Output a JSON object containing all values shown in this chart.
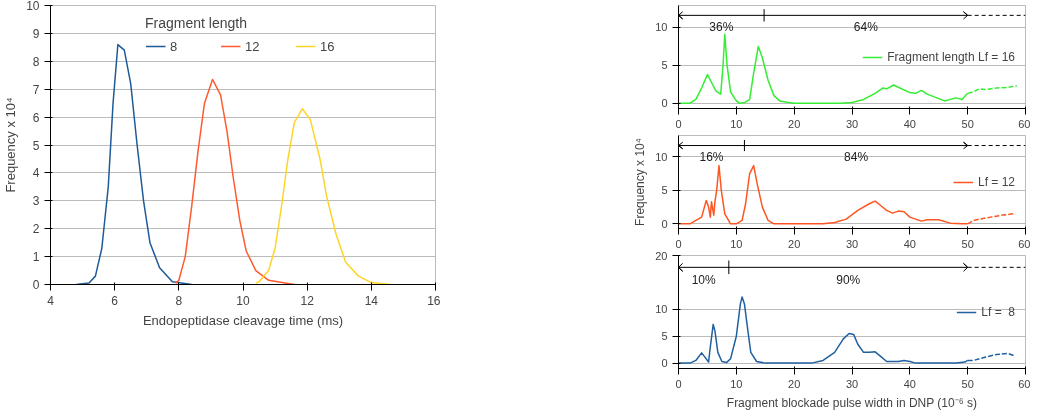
{
  "chart_data": [
    {
      "type": "line",
      "xlabel": "Endopeptidase cleavage time (ms)",
      "ylabel": "Frequency x 10⁴",
      "legend_title": "Fragment length",
      "legend": "top",
      "grid": "y",
      "xlim": [
        4,
        16
      ],
      "xticks": [
        4,
        6,
        8,
        10,
        12,
        14,
        16
      ],
      "ylim": [
        0,
        10
      ],
      "yticks": [
        0,
        1,
        2,
        3,
        4,
        5,
        6,
        7,
        8,
        9,
        10
      ],
      "series": [
        {
          "name": "8",
          "color": "#1f5a99",
          "x": [
            4.8,
            5.2,
            5.4,
            5.6,
            5.8,
            5.95,
            6.1,
            6.3,
            6.5,
            6.7,
            6.9,
            7.1,
            7.4,
            7.8,
            8.4
          ],
          "values": [
            0,
            0.05,
            0.3,
            1.3,
            3.5,
            6.5,
            8.6,
            8.4,
            7.2,
            5.0,
            3.0,
            1.5,
            0.6,
            0.1,
            0
          ]
        },
        {
          "name": "12",
          "color": "#ff5a30",
          "x": [
            7.9,
            8.0,
            8.2,
            8.4,
            8.6,
            8.8,
            9.05,
            9.3,
            9.5,
            9.7,
            9.9,
            10.1,
            10.4,
            10.8,
            11.6
          ],
          "values": [
            0.05,
            0.15,
            1.0,
            2.8,
            4.8,
            6.5,
            7.35,
            6.8,
            5.5,
            3.8,
            2.3,
            1.2,
            0.5,
            0.15,
            0
          ]
        },
        {
          "name": "16",
          "color": "#ffd42a",
          "x": [
            10.4,
            10.5,
            10.8,
            11.0,
            11.2,
            11.4,
            11.6,
            11.85,
            12.1,
            12.4,
            12.6,
            12.9,
            13.2,
            13.6,
            14.0,
            14.6
          ],
          "values": [
            0.05,
            0.1,
            0.5,
            1.3,
            2.8,
            4.5,
            5.8,
            6.3,
            5.9,
            4.5,
            3.2,
            1.8,
            0.8,
            0.3,
            0.07,
            0
          ]
        }
      ]
    },
    {
      "type": "line",
      "legend": "right",
      "grid": "y",
      "xlim": [
        0,
        60
      ],
      "xticks": [
        0,
        10,
        20,
        30,
        40,
        50,
        60
      ],
      "ylim": [
        -0.7,
        12.9
      ],
      "yticks": [
        0,
        5,
        10
      ],
      "ref_lines": [
        {
          "axis": "y",
          "value": 11.6
        },
        {
          "axis": "y",
          "value": 11.6,
          "line_style": "dashed"
        },
        {
          "axis": "x",
          "value": 14.8
        }
      ],
      "annotations": [
        "36%",
        "64%"
      ],
      "series": [
        {
          "name": "Fragment length Lf = 16",
          "color": "#33ee33",
          "line_style": "solid",
          "x": [
            0,
            2,
            3,
            4,
            5,
            6,
            6.5,
            7.3,
            7.7,
            8,
            8.4,
            9,
            10,
            10.5,
            11.5,
            12.3,
            13,
            13.8,
            14.5,
            15.5,
            16.5,
            17.5,
            19,
            20,
            28,
            30,
            32,
            34,
            35.3,
            36,
            37.2,
            38,
            40,
            41,
            42,
            43,
            45,
            46,
            48,
            49,
            50
          ],
          "values": [
            0,
            0,
            0.5,
            2,
            3.8,
            2.3,
            1.6,
            1.2,
            5,
            9.1,
            5,
            1.5,
            0.3,
            0,
            0.1,
            0.5,
            4,
            7.5,
            6,
            3,
            1,
            0.3,
            0.1,
            0,
            0,
            0.1,
            0.5,
            1.3,
            2,
            1.9,
            2.4,
            2.1,
            1.4,
            1.3,
            1.7,
            1.2,
            0.6,
            0.3,
            0.7,
            0.5,
            1.3
          ]
        },
        {
          "color": "#33ee33",
          "line_style": "dashed",
          "x": [
            50,
            51,
            52,
            53,
            55,
            57,
            58.5
          ],
          "values": [
            1.3,
            1.5,
            1.9,
            1.8,
            2.0,
            2.1,
            2.3
          ]
        }
      ]
    },
    {
      "type": "line",
      "ylabel": "Frequency x 10⁴",
      "legend": "right",
      "grid": "y",
      "xlim": [
        0,
        60
      ],
      "xticks": [
        0,
        10,
        20,
        30,
        40,
        50,
        60
      ],
      "ylim": [
        -0.7,
        13.2
      ],
      "yticks": [
        0,
        5,
        10
      ],
      "ref_lines": [
        {
          "axis": "y",
          "value": 11.7
        },
        {
          "axis": "y",
          "value": 11.7,
          "line_style": "dashed"
        },
        {
          "axis": "x",
          "value": 11.4
        }
      ],
      "annotations": [
        "16%",
        "84%"
      ],
      "series": [
        {
          "name": "Lf = 12",
          "color": "#ff5522",
          "line_style": "solid",
          "x": [
            0,
            2,
            3,
            4,
            4.8,
            5.2,
            5.5,
            5.7,
            6.1,
            6.3,
            6.6,
            7,
            7.4,
            8,
            9,
            10,
            11,
            11.6,
            12.3,
            13,
            13.6,
            14.5,
            15.5,
            16.5,
            25,
            27,
            29,
            31,
            33,
            34,
            35,
            36,
            37,
            38,
            39,
            40,
            42,
            43,
            45,
            47,
            49,
            50
          ],
          "values": [
            0,
            0,
            0.5,
            1,
            3.5,
            2.5,
            1,
            3.3,
            1.3,
            3.3,
            5,
            8.7,
            5,
            1.5,
            0,
            0,
            0.5,
            3,
            7.5,
            8.7,
            6,
            2.5,
            0.5,
            0,
            0,
            0.2,
            0.7,
            2,
            3,
            3.4,
            2.7,
            2,
            1.6,
            1.9,
            1.8,
            1,
            0.4,
            0.6,
            0.6,
            0.1,
            0,
            0
          ]
        },
        {
          "color": "#ff5522",
          "line_style": "dashed",
          "x": [
            50,
            51,
            52,
            54,
            56,
            58
          ],
          "values": [
            0,
            0.5,
            0.7,
            1,
            1.3,
            1.5
          ]
        }
      ]
    },
    {
      "type": "line",
      "xlabel": "Fragment blockade pulse width in DNP (10⁻⁶ s)",
      "legend": "right",
      "grid": "y",
      "xlim": [
        0,
        60
      ],
      "xticks": [
        0,
        10,
        20,
        30,
        40,
        50,
        60
      ],
      "ylim": [
        -1,
        20
      ],
      "yticks": [
        0,
        5,
        10,
        20
      ],
      "ref_lines": [
        {
          "axis": "y",
          "value": 17.8
        },
        {
          "axis": "y",
          "value": 17.8,
          "line_style": "dashed"
        },
        {
          "axis": "x",
          "value": 8.7
        }
      ],
      "annotations": [
        "10%",
        "90%"
      ],
      "series": [
        {
          "name": "Lf =  8",
          "color": "#2060a0",
          "line_style": "solid",
          "x": [
            0,
            2,
            3,
            4,
            4.5,
            5.2,
            5.5,
            6,
            6.3,
            6.8,
            7.5,
            8.3,
            9,
            10,
            10.7,
            11,
            11.4,
            12,
            12.5,
            13.5,
            15,
            23,
            25,
            27,
            28.5,
            29.5,
            30.3,
            31,
            32,
            33,
            34,
            35,
            36,
            38,
            39,
            40,
            41,
            48,
            49.5,
            50
          ],
          "values": [
            0,
            0,
            0.5,
            1.9,
            1.2,
            0.2,
            3,
            7.2,
            6,
            2,
            0.3,
            0.1,
            0.8,
            5,
            11,
            12.3,
            11,
            6,
            2,
            0.3,
            0,
            0,
            0.5,
            2,
            4.5,
            5.5,
            5.3,
            3.5,
            2,
            2,
            2.1,
            1.2,
            0.3,
            0.3,
            0.5,
            0.3,
            0,
            0,
            0.2,
            0.5
          ]
        },
        {
          "color": "#2060a0",
          "line_style": "dashed",
          "x": [
            50,
            51,
            53,
            55,
            57,
            58
          ],
          "values": [
            0.5,
            0.5,
            1.1,
            1.6,
            1.8,
            1.4
          ]
        }
      ]
    }
  ]
}
